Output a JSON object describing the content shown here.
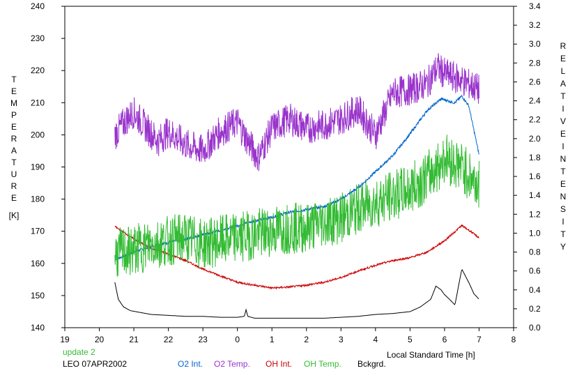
{
  "chart_data": {
    "type": "line",
    "xlabel": "Local Standard Time [h]",
    "ylabel_left": "TEMPERATURE [K]",
    "ylabel_right": "RELATIVE INTENSITY",
    "ylabel_left_word": "TEMPERATURE",
    "ylabel_left_unit": "[K]",
    "ylabel_right_word1": "RELATIVE",
    "ylabel_right_word2": "INTENSITY",
    "x_ticks": [
      "19",
      "20",
      "21",
      "22",
      "23",
      "0",
      "1",
      "2",
      "3",
      "4",
      "5",
      "6",
      "7",
      "8"
    ],
    "y_left_ticks": [
      "140",
      "150",
      "160",
      "170",
      "180",
      "190",
      "200",
      "210",
      "220",
      "230",
      "240"
    ],
    "y_right_ticks": [
      "0.0",
      "0.2",
      "0.4",
      "0.6",
      "0.8",
      "1.0",
      "1.2",
      "1.4",
      "1.6",
      "1.8",
      "2.0",
      "2.2",
      "2.4",
      "2.6",
      "2.8",
      "3.0",
      "3.2",
      "3.4"
    ],
    "xlim": [
      19,
      32
    ],
    "ylim_left": [
      140,
      240
    ],
    "ylim_right": [
      0,
      3.4
    ],
    "grid": false,
    "legend_position": "bottom",
    "footer": {
      "update": "update 2",
      "station_date": "LEO 07APR2002"
    },
    "series": [
      {
        "name": "O2 Int.",
        "axis": "right",
        "color": "#0066cc",
        "noise": 0.015,
        "x": [
          20.45,
          21.0,
          21.5,
          22.0,
          22.5,
          23.0,
          23.5,
          24.0,
          24.5,
          25.0,
          25.5,
          26.0,
          26.5,
          27.0,
          27.5,
          28.0,
          28.5,
          29.0,
          29.5,
          29.9,
          30.3,
          30.5,
          30.7,
          31.0
        ],
        "y": [
          0.72,
          0.8,
          0.86,
          0.9,
          0.94,
          0.98,
          1.03,
          1.08,
          1.13,
          1.17,
          1.22,
          1.25,
          1.28,
          1.36,
          1.48,
          1.65,
          1.82,
          2.05,
          2.3,
          2.42,
          2.38,
          2.45,
          2.35,
          1.83
        ]
      },
      {
        "name": "O2 Temp.",
        "axis": "left",
        "color": "#9933cc",
        "noise": 5,
        "x": [
          20.45,
          20.8,
          21.0,
          21.3,
          21.7,
          22.0,
          22.5,
          23.0,
          23.5,
          24.0,
          24.3,
          24.6,
          25.0,
          25.5,
          26.0,
          26.5,
          27.0,
          27.5,
          28.0,
          28.5,
          29.0,
          29.5,
          29.8,
          30.0,
          30.5,
          31.0
        ],
        "y": [
          200,
          205,
          207,
          203,
          198,
          201,
          197,
          195,
          201,
          204,
          198,
          193,
          202,
          205,
          202,
          203,
          205,
          208,
          200,
          213,
          214,
          216,
          221,
          219,
          217,
          214
        ]
      },
      {
        "name": "OH Int.",
        "axis": "right",
        "color": "#cc0000",
        "noise": 0.01,
        "x": [
          20.45,
          21.0,
          21.5,
          22.0,
          22.5,
          23.0,
          23.5,
          24.0,
          24.5,
          25.0,
          25.5,
          26.0,
          26.5,
          27.0,
          27.5,
          28.0,
          28.5,
          29.0,
          29.5,
          30.0,
          30.5,
          30.75,
          31.0
        ],
        "y": [
          1.07,
          0.94,
          0.84,
          0.78,
          0.71,
          0.62,
          0.55,
          0.48,
          0.45,
          0.42,
          0.43,
          0.45,
          0.48,
          0.53,
          0.6,
          0.66,
          0.71,
          0.74,
          0.8,
          0.92,
          1.08,
          1.02,
          0.95
        ]
      },
      {
        "name": "OH Temp.",
        "axis": "left",
        "color": "#33bb33",
        "noise": 8,
        "x": [
          20.45,
          21.0,
          21.5,
          22.0,
          22.5,
          23.0,
          23.5,
          24.0,
          24.5,
          25.0,
          25.5,
          26.0,
          26.5,
          27.0,
          27.5,
          28.0,
          28.5,
          29.0,
          29.5,
          29.8,
          30.0,
          30.5,
          31.0
        ],
        "y": [
          163,
          164,
          166,
          167,
          168,
          166,
          167,
          168,
          169,
          170,
          171,
          171,
          173,
          174,
          177,
          179,
          181,
          183,
          187,
          190,
          193,
          190,
          184
        ]
      },
      {
        "name": "Bckgrd.",
        "axis": "right",
        "color": "#000000",
        "noise": 0,
        "x": [
          20.45,
          20.55,
          20.7,
          20.9,
          21.2,
          21.5,
          22.0,
          22.5,
          23.0,
          23.5,
          24.0,
          24.2,
          24.25,
          24.3,
          24.5,
          25.0,
          25.5,
          26.0,
          26.5,
          27.0,
          27.5,
          28.0,
          28.5,
          29.0,
          29.3,
          29.6,
          29.75,
          29.9,
          30.0,
          30.2,
          30.3,
          30.5,
          30.7,
          30.85,
          31.0
        ],
        "y": [
          0.48,
          0.3,
          0.22,
          0.18,
          0.16,
          0.14,
          0.13,
          0.12,
          0.12,
          0.11,
          0.11,
          0.12,
          0.19,
          0.12,
          0.1,
          0.1,
          0.1,
          0.1,
          0.1,
          0.11,
          0.12,
          0.14,
          0.15,
          0.17,
          0.22,
          0.3,
          0.44,
          0.4,
          0.35,
          0.28,
          0.24,
          0.62,
          0.48,
          0.36,
          0.3
        ]
      }
    ]
  }
}
